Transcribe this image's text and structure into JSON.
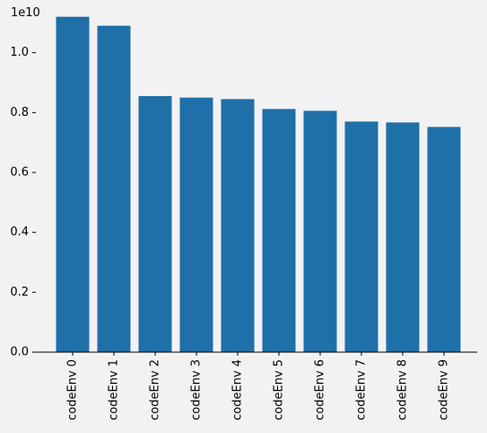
{
  "chart_data": {
    "type": "bar",
    "categories": [
      "codeEnv 0",
      "codeEnv 1",
      "codeEnv 2",
      "codeEnv 3",
      "codeEnv 4",
      "codeEnv 5",
      "codeEnv 6",
      "codeEnv 7",
      "codeEnv 8",
      "codeEnv 9"
    ],
    "values": [
      11200000000,
      10900000000,
      8550000000,
      8500000000,
      8450000000,
      8120000000,
      8060000000,
      7700000000,
      7670000000,
      7520000000
    ],
    "title": "",
    "xlabel": "",
    "ylabel": "",
    "ylim": [
      0,
      11760000000
    ],
    "yticks": [
      0,
      2000000000,
      4000000000,
      6000000000,
      8000000000,
      10000000000
    ],
    "ytick_labels": [
      "0.0",
      "0.2",
      "0.4",
      "0.6",
      "0.8",
      "1.0"
    ],
    "offset_text": "1e10",
    "bar_color": "#1f6fa8",
    "grid": false,
    "xtick_rotation": "vertical"
  }
}
